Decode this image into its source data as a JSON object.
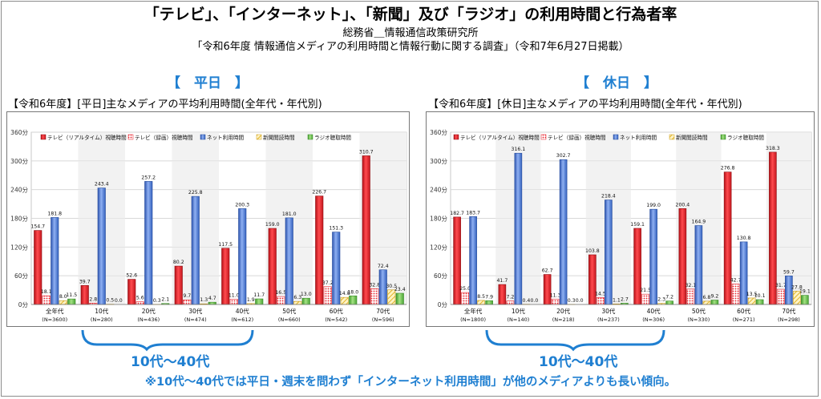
{
  "header": {
    "title": "「テレビ」、「インターネット」、「新聞」及び「ラジオ」の利用時間と行為者率",
    "org": "総務省＿情報通信政策研究所",
    "survey": "「令和6年度 情報通信メディアの利用時間と情報行動に関する調査」（令和7年6月27日掲載）"
  },
  "sections": {
    "weekday": "【　平日　】",
    "holiday": "【　休日　】"
  },
  "brackets": {
    "weekday_label": "10代～40代",
    "holiday_label": "10代～40代"
  },
  "note": "※10代～40代では平日・週末を問わず「インターネット利用時間」が他のメディアよりも長い傾向。",
  "colors": {
    "tv_realtime": "#e8202a",
    "tv_recorded": "#f0b9b9",
    "internet": "#4a78d0",
    "newspaper": "#e8c341",
    "radio": "#6cc04a",
    "accent": "#1f7fd1"
  },
  "chart_data": [
    {
      "type": "bar",
      "title": "【令和6年度】[平日]主なメディアの平均利用時間(全年代・年代別)",
      "ylim": [
        0,
        360
      ],
      "yticks": [
        "0分",
        "60分",
        "120分",
        "180分",
        "240分",
        "300分",
        "360分"
      ],
      "categories": [
        "全年代",
        "10代",
        "20代",
        "30代",
        "40代",
        "50代",
        "60代",
        "70代"
      ],
      "category_sub": [
        "(N=3600)",
        "(N=280)",
        "(N=436)",
        "(N=474)",
        "(N=612)",
        "(N=660)",
        "(N=542)",
        "(N=596)"
      ],
      "legend_position": "top",
      "series": [
        {
          "name": "テレビ（リアルタイム）視聴時間",
          "color": "#e8202a",
          "values": [
            154.7,
            39.7,
            52.6,
            80.2,
            117.5,
            159.0,
            226.7,
            310.7
          ],
          "labels": [
            "154.7",
            "39.7",
            "52.6",
            "80.2",
            "117.5",
            "159.0",
            "226.7",
            "310.7"
          ]
        },
        {
          "name": "テレビ（録画）視聴時間",
          "color": "#f0b9b9",
          "values": [
            18.1,
            2.8,
            5.6,
            9.7,
            11.0,
            16.5,
            37.2,
            32.8
          ],
          "labels": [
            "18.1",
            "2.8",
            "5.6",
            "9.7",
            "11.0",
            "16.5",
            "37.2",
            "32.8"
          ]
        },
        {
          "name": "ネット利用時間",
          "color": "#4a78d0",
          "values": [
            181.8,
            243.4,
            257.2,
            225.8,
            200.3,
            181.0,
            151.3,
            72.4
          ],
          "labels": [
            "181.8",
            "243.4",
            "257.2",
            "225.8",
            "200.3",
            "181.0",
            "151.3",
            "72.4"
          ]
        },
        {
          "name": "新聞閲読時間",
          "color": "#e8c341",
          "values": [
            8.0,
            0.5,
            0.3,
            1.3,
            1.9,
            6.3,
            14.8,
            30.5
          ],
          "labels": [
            "8.0",
            "0.5",
            "0.3",
            "1.3",
            "1.9",
            "6.3",
            "14.8",
            "30.5"
          ]
        },
        {
          "name": "ラジオ聴取時間",
          "color": "#6cc04a",
          "values": [
            11.5,
            0.0,
            2.1,
            4.7,
            11.7,
            13.0,
            18.0,
            23.4
          ],
          "labels": [
            "11.5",
            "0.0",
            "2.1",
            "4.7",
            "11.7",
            "13.0",
            "18.0",
            "23.4"
          ]
        }
      ]
    },
    {
      "type": "bar",
      "title": "【令和6年度】[休日]主なメディアの平均利用時間(全年代・年代別)",
      "ylim": [
        0,
        360
      ],
      "yticks": [
        "0分",
        "60分",
        "120分",
        "180分",
        "240分",
        "300分",
        "360分"
      ],
      "categories": [
        "全年代",
        "10代",
        "20代",
        "30代",
        "40代",
        "50代",
        "60代",
        "70代"
      ],
      "category_sub": [
        "(N=1800)",
        "(N=140)",
        "(N=218)",
        "(N=237)",
        "(N=306)",
        "(N=330)",
        "(N=271)",
        "(N=298)"
      ],
      "legend_position": "top",
      "series": [
        {
          "name": "テレビ（リアルタイム）視聴時間",
          "color": "#e8202a",
          "values": [
            182.7,
            41.7,
            62.7,
            103.8,
            159.1,
            200.4,
            276.8,
            318.3
          ],
          "labels": [
            "182.7",
            "41.7",
            "62.7",
            "103.8",
            "159.1",
            "200.4",
            "276.8",
            "318.3"
          ]
        },
        {
          "name": "テレビ（録画）視聴時間",
          "color": "#f0b9b9",
          "values": [
            25.0,
            7.2,
            11.3,
            14.5,
            21.5,
            32.1,
            42.7,
            31.7
          ],
          "labels": [
            "25.0",
            "7.2",
            "11.3",
            "14.5",
            "21.5",
            "32.1",
            "42.7",
            "31.7"
          ]
        },
        {
          "name": "ネット利用時間",
          "color": "#4a78d0",
          "values": [
            183.7,
            316.1,
            302.7,
            218.4,
            199.0,
            164.9,
            130.8,
            59.7
          ],
          "labels": [
            "183.7",
            "316.1",
            "302.7",
            "218.4",
            "199.0",
            "164.9",
            "130.8",
            "59.7"
          ]
        },
        {
          "name": "新聞閲読時間",
          "color": "#e8c341",
          "values": [
            8.5,
            0.4,
            0.3,
            1.1,
            2.3,
            6.8,
            13.5,
            27.8
          ],
          "labels": [
            "8.5",
            "0.4",
            "0.3",
            "1.1",
            "2.3",
            "6.8",
            "13.5",
            "27.8"
          ]
        },
        {
          "name": "ラジオ聴取時間",
          "color": "#6cc04a",
          "values": [
            7.9,
            0.0,
            0.0,
            2.7,
            7.2,
            9.2,
            10.1,
            19.1
          ],
          "labels": [
            "7.9",
            "0.0",
            "0.0",
            "2.7",
            "7.2",
            "9.2",
            "10.1",
            "19.1"
          ]
        }
      ]
    }
  ]
}
